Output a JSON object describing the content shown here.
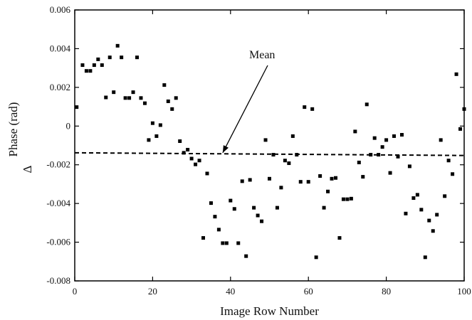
{
  "chart_data": {
    "type": "scatter",
    "title": "",
    "xlabel": "Image Row Number",
    "ylabel": "Phase (rad)",
    "ylabel_prefix": "Δ",
    "xlim": [
      0,
      100
    ],
    "ylim": [
      -0.008,
      0.006
    ],
    "xticks": [
      0,
      20,
      40,
      60,
      80,
      100
    ],
    "xtick_labels": [
      "0",
      "20",
      "40",
      "60",
      "80",
      "100"
    ],
    "yticks": [
      -0.008,
      -0.006,
      -0.004,
      -0.002,
      0,
      0.002,
      0.004,
      0.006
    ],
    "ytick_labels": [
      "-0.008",
      "-0.006",
      "-0.004",
      "-0.002",
      "0",
      "0.002",
      "0.004",
      "0.006"
    ],
    "grid": false,
    "mean_line": {
      "label": "Mean",
      "y_start": -0.00138,
      "y_end": -0.00152
    },
    "annotation": {
      "text": "Mean",
      "arrow_to": [
        38,
        -0.00138
      ]
    },
    "series": [
      {
        "marker": "square",
        "color": "#000000",
        "points": [
          [
            0.5,
            0.00098
          ],
          [
            2,
            0.00315
          ],
          [
            3,
            0.00285
          ],
          [
            4,
            0.00285
          ],
          [
            5,
            0.00315
          ],
          [
            6,
            0.00345
          ],
          [
            7,
            0.00315
          ],
          [
            8,
            0.00148
          ],
          [
            9,
            0.00355
          ],
          [
            10,
            0.00175
          ],
          [
            11,
            0.00415
          ],
          [
            12,
            0.00355
          ],
          [
            13,
            0.00145
          ],
          [
            14,
            0.00145
          ],
          [
            15,
            0.00175
          ],
          [
            16,
            0.00355
          ],
          [
            17,
            0.00145
          ],
          [
            18,
            0.00118
          ],
          [
            19,
            -0.00072
          ],
          [
            20,
            0.00015
          ],
          [
            21,
            -0.00052
          ],
          [
            22,
            5e-05
          ],
          [
            23,
            0.00212
          ],
          [
            24,
            0.00128
          ],
          [
            25,
            0.00088
          ],
          [
            26,
            0.00145
          ],
          [
            27,
            -0.00078
          ],
          [
            28,
            -0.00138
          ],
          [
            29,
            -0.00122
          ],
          [
            30,
            -0.00168
          ],
          [
            31,
            -0.00198
          ],
          [
            32,
            -0.00178
          ],
          [
            33,
            -0.00578
          ],
          [
            34,
            -0.00245
          ],
          [
            35,
            -0.00398
          ],
          [
            36,
            -0.00468
          ],
          [
            37,
            -0.00535
          ],
          [
            38,
            -0.00605
          ],
          [
            39,
            -0.00605
          ],
          [
            40,
            -0.00385
          ],
          [
            41,
            -0.00428
          ],
          [
            42,
            -0.00605
          ],
          [
            43,
            -0.00285
          ],
          [
            44,
            -0.00672
          ],
          [
            45,
            -0.00278
          ],
          [
            46,
            -0.00422
          ],
          [
            47,
            -0.00462
          ],
          [
            48,
            -0.00492
          ],
          [
            49,
            -0.00072
          ],
          [
            50,
            -0.00272
          ],
          [
            51,
            -0.00148
          ],
          [
            52,
            -0.00422
          ],
          [
            53,
            -0.00318
          ],
          [
            54,
            -0.00178
          ],
          [
            55,
            -0.00192
          ],
          [
            56,
            -0.00052
          ],
          [
            57,
            -0.00148
          ],
          [
            58,
            -0.00288
          ],
          [
            59,
            0.00098
          ],
          [
            60,
            -0.00288
          ],
          [
            61,
            0.00088
          ],
          [
            62,
            -0.00678
          ],
          [
            63,
            -0.00258
          ],
          [
            64,
            -0.00422
          ],
          [
            65,
            -0.00338
          ],
          [
            66,
            -0.00272
          ],
          [
            67,
            -0.00268
          ],
          [
            68,
            -0.00578
          ],
          [
            69,
            -0.00378
          ],
          [
            70,
            -0.00378
          ],
          [
            71,
            -0.00375
          ],
          [
            72,
            -0.00028
          ],
          [
            73,
            -0.00188
          ],
          [
            74,
            -0.00262
          ],
          [
            75,
            0.00112
          ],
          [
            76,
            -0.00148
          ],
          [
            77,
            -0.00062
          ],
          [
            78,
            -0.00148
          ],
          [
            79,
            -0.00108
          ],
          [
            80,
            -0.00072
          ],
          [
            81,
            -0.00242
          ],
          [
            82,
            -0.00052
          ],
          [
            83,
            -0.00158
          ],
          [
            84,
            -0.00045
          ],
          [
            85,
            -0.00452
          ],
          [
            86,
            -0.00208
          ],
          [
            87,
            -0.00372
          ],
          [
            88,
            -0.00355
          ],
          [
            89,
            -0.00432
          ],
          [
            90,
            -0.00678
          ],
          [
            91,
            -0.00488
          ],
          [
            92,
            -0.00542
          ],
          [
            93,
            -0.00458
          ],
          [
            94,
            -0.00072
          ],
          [
            95,
            -0.00362
          ],
          [
            96,
            -0.00178
          ],
          [
            97,
            -0.00248
          ],
          [
            98,
            0.00268
          ],
          [
            99,
            -0.00015
          ],
          [
            100,
            0.00088
          ]
        ]
      }
    ]
  }
}
